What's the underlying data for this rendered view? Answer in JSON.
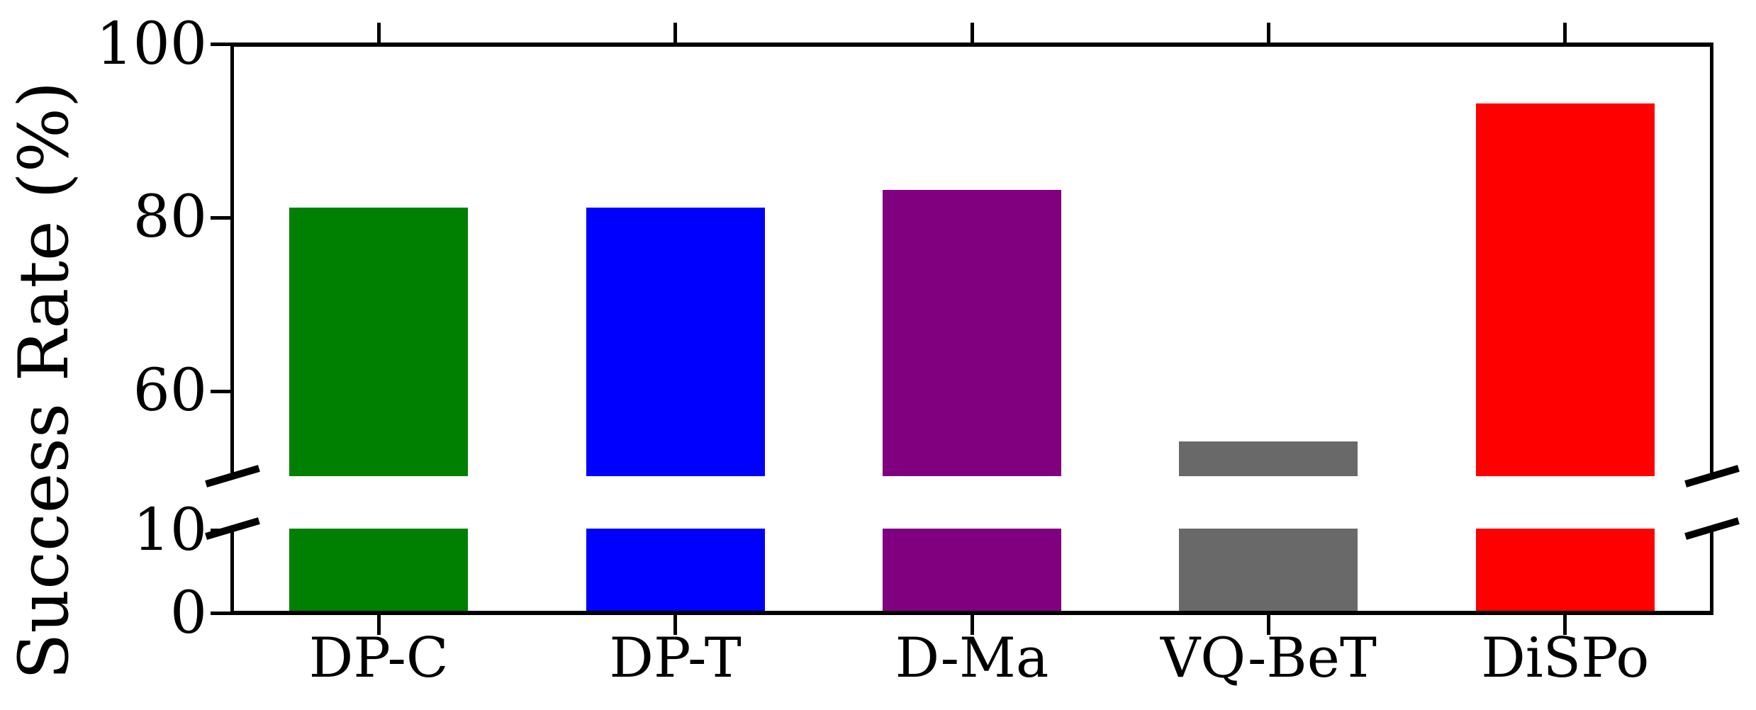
{
  "figure": {
    "background": "#ffffff",
    "axis_color": "#000000"
  },
  "chart_data": {
    "type": "bar",
    "title": "",
    "xlabel": "",
    "ylabel": "Success Rate (%)",
    "categories": [
      "DP-C",
      "DP-T",
      "D-Ma",
      "VQ-BeT",
      "DiSPo"
    ],
    "values": [
      81,
      81,
      83,
      54,
      93
    ],
    "bar_colors": [
      "#008000",
      "#0000ff",
      "#800080",
      "#696969",
      "#ff0000"
    ],
    "grid": false,
    "legend": "none",
    "broken_axis": {
      "top_panel": {
        "ylim": [
          50,
          100
        ],
        "yticks": [
          100,
          80,
          60
        ],
        "ytick_labels": [
          "100",
          "80",
          "60"
        ]
      },
      "bottom_panel": {
        "ylim": [
          0,
          10
        ],
        "yticks": [
          10,
          0
        ],
        "ytick_labels": [
          "10",
          "0"
        ]
      }
    }
  }
}
